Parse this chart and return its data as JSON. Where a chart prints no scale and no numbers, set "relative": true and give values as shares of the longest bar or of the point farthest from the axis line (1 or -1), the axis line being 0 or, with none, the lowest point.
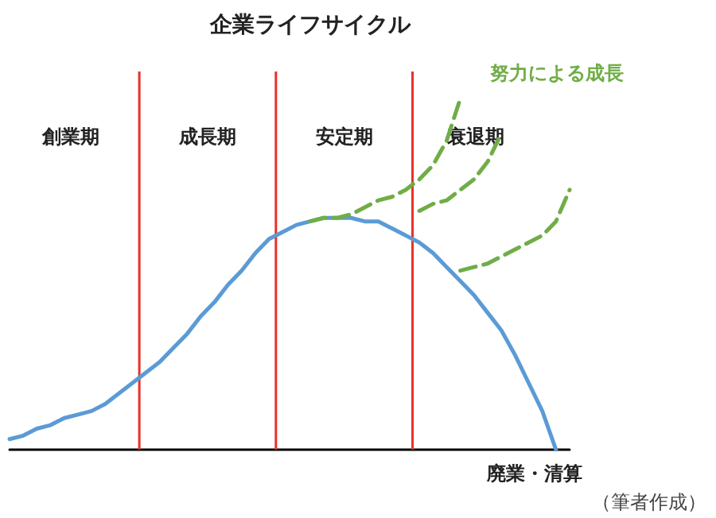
{
  "chart_data": {
    "type": "line",
    "title": "企業ライフサイクル",
    "relative": true,
    "grid": false,
    "categories": [
      null,
      null,
      null,
      null,
      null,
      null,
      null,
      null,
      null,
      null,
      null,
      null,
      null,
      null,
      null,
      null,
      null,
      null,
      null,
      null,
      null,
      null,
      null,
      null,
      null,
      null,
      null,
      null,
      null,
      null,
      null,
      null,
      null,
      null,
      null,
      null,
      null,
      null,
      null,
      null,
      null,
      null
    ],
    "series": [
      {
        "color": "#5b9bd5",
        "line_style": "solid",
        "values": [
          0.03,
          0.04,
          0.06,
          0.07,
          0.09,
          0.1,
          0.11,
          0.13,
          0.16,
          0.19,
          0.22,
          0.25,
          0.29,
          0.33,
          0.38,
          0.42,
          0.47,
          0.51,
          0.56,
          0.6,
          0.62,
          0.64,
          0.65,
          0.66,
          0.66,
          0.66,
          0.65,
          0.65,
          0.63,
          0.61,
          0.59,
          0.56,
          0.52,
          0.48,
          0.44,
          0.39,
          0.34,
          0.27,
          0.19,
          0.11,
          0,
          null
        ]
      },
      {
        "color": "#70ad47",
        "line_style": "dashed",
        "values": [
          null,
          null,
          null,
          null,
          null,
          null,
          null,
          null,
          null,
          null,
          null,
          null,
          null,
          null,
          null,
          null,
          null,
          null,
          null,
          null,
          null,
          null,
          0.65,
          0.66,
          0.66,
          0.67,
          0.69,
          0.71,
          0.72,
          0.74,
          0.77,
          0.81,
          0.88,
          1.0,
          null,
          null,
          null,
          null,
          null,
          null,
          null,
          null
        ]
      },
      {
        "color": "#70ad47",
        "line_style": "dashed",
        "values": [
          null,
          null,
          null,
          null,
          null,
          null,
          null,
          null,
          null,
          null,
          null,
          null,
          null,
          null,
          null,
          null,
          null,
          null,
          null,
          null,
          null,
          null,
          null,
          null,
          null,
          null,
          null,
          null,
          null,
          null,
          0.68,
          0.7,
          0.71,
          0.74,
          0.77,
          0.82,
          0.9,
          null,
          null,
          null,
          null,
          null
        ]
      },
      {
        "color": "#70ad47",
        "line_style": "dashed",
        "values": [
          null,
          null,
          null,
          null,
          null,
          null,
          null,
          null,
          null,
          null,
          null,
          null,
          null,
          null,
          null,
          null,
          null,
          null,
          null,
          null,
          null,
          null,
          null,
          null,
          null,
          null,
          null,
          null,
          null,
          null,
          null,
          null,
          null,
          0.51,
          0.52,
          0.53,
          0.55,
          0.57,
          0.59,
          0.61,
          0.65,
          0.74
        ]
      }
    ],
    "annotations": [
      "創業期",
      "成長期",
      "安定期",
      "衰退期",
      "努力による成長",
      "廃業・清算",
      "（筆者作成）"
    ]
  }
}
